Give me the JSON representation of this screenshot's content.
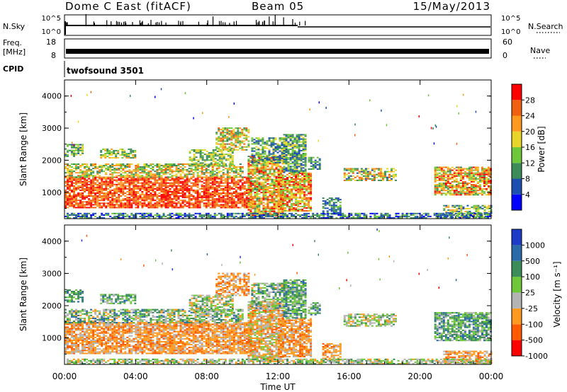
{
  "header": {
    "station": "Dome C East (fitACF)",
    "beam": "Beam 05",
    "date": "15/May/2013"
  },
  "top_panels": {
    "nsky_label": "N.Sky",
    "nsky_ticks": [
      "10^5",
      "10^0"
    ],
    "nsearch_label": "N.Search",
    "nsearch_ticks": [
      "10^5",
      "10^0"
    ],
    "freq_label_1": "Freq.",
    "freq_label_2": "[MHz]",
    "freq_ticks": [
      "18",
      "8"
    ],
    "nave_label": "Nave",
    "nave_ticks": [
      "60",
      "0"
    ],
    "cpid_label": "CPID",
    "cpid_value": "twofsound 3501"
  },
  "x_axis": {
    "label": "Time UT",
    "ticks": [
      "00:00",
      "04:00",
      "08:00",
      "12:00",
      "16:00",
      "20:00",
      "00:00"
    ]
  },
  "colors": {
    "power": [
      "#0000ff",
      "#1c4fb0",
      "#3c8c5a",
      "#6fc83a",
      "#e8d42a",
      "#ff9a1e",
      "#f06010",
      "#ff0000"
    ],
    "velocity": [
      "#ff0000",
      "#ff5a00",
      "#ff9a1e",
      "#b4b4b4",
      "#6fc83a",
      "#3c8c5a",
      "#2a6aa8",
      "#1c3cc8"
    ]
  },
  "chart_data": [
    {
      "type": "heatmap",
      "name": "power-panel",
      "ylabel": "Slant Range [km]",
      "yticks": [
        "4000",
        "3000",
        "2000",
        "1000"
      ],
      "ylim": [
        180,
        4500
      ],
      "xlim_hours": [
        0,
        24
      ],
      "colorbar_label": "Power [dB]",
      "colorbar_ticks": [
        "28",
        "24",
        "20",
        "16",
        "12",
        "8",
        "4"
      ],
      "colorbar_range": [
        0,
        32
      ],
      "regions": [
        {
          "t0": 0.0,
          "t1": 10.5,
          "r0": 500,
          "r1": 1450,
          "v0": 22,
          "v1": 31
        },
        {
          "t0": 0.0,
          "t1": 10.0,
          "r0": 1450,
          "r1": 1900,
          "v0": 8,
          "v1": 26
        },
        {
          "t0": 2.0,
          "t1": 4.0,
          "r0": 2050,
          "r1": 2350,
          "v0": 8,
          "v1": 22
        },
        {
          "t0": 0.0,
          "t1": 1.0,
          "r0": 2100,
          "r1": 2500,
          "v0": 6,
          "v1": 18
        },
        {
          "t0": 8.5,
          "t1": 10.3,
          "r0": 2300,
          "r1": 3000,
          "v0": 8,
          "v1": 26
        },
        {
          "t0": 7.0,
          "t1": 9.5,
          "r0": 1800,
          "r1": 2300,
          "v0": 8,
          "v1": 20
        },
        {
          "t0": 10.3,
          "t1": 12.3,
          "r0": 250,
          "r1": 2100,
          "v0": 10,
          "v1": 31
        },
        {
          "t0": 10.5,
          "t1": 12.5,
          "r0": 1900,
          "r1": 2700,
          "v0": 4,
          "v1": 18
        },
        {
          "t0": 12.0,
          "t1": 13.9,
          "r0": 400,
          "r1": 1600,
          "v0": 12,
          "v1": 31
        },
        {
          "t0": 12.3,
          "t1": 13.5,
          "r0": 1600,
          "r1": 2800,
          "v0": 4,
          "v1": 18
        },
        {
          "t0": 13.7,
          "t1": 14.3,
          "r0": 1700,
          "r1": 2100,
          "v0": 4,
          "v1": 16
        },
        {
          "t0": 15.7,
          "t1": 18.7,
          "r0": 1350,
          "r1": 1750,
          "v0": 6,
          "v1": 28
        },
        {
          "t0": 14.5,
          "t1": 15.5,
          "r0": 300,
          "r1": 800,
          "v0": 4,
          "v1": 14
        },
        {
          "t0": 20.8,
          "t1": 24.0,
          "r0": 900,
          "r1": 1800,
          "v0": 10,
          "v1": 31
        },
        {
          "t0": 21.3,
          "t1": 24.0,
          "r0": 200,
          "r1": 600,
          "v0": 4,
          "v1": 24
        },
        {
          "t0": 0.0,
          "t1": 24.0,
          "r0": 180,
          "r1": 330,
          "v0": 2,
          "v1": 14
        }
      ]
    },
    {
      "type": "heatmap",
      "name": "velocity-panel",
      "ylabel": "Slant Range [km]",
      "yticks": [
        "4000",
        "3000",
        "2000",
        "1000"
      ],
      "ylim": [
        180,
        4500
      ],
      "xlim_hours": [
        0,
        24
      ],
      "colorbar_label": "Velocity [m s⁻¹]",
      "colorbar_ticks": [
        "1000",
        "500",
        "100",
        "25",
        "-25",
        "-100",
        "-500",
        "-1000"
      ],
      "colorbar_range": [
        -1000,
        1000
      ],
      "regions": [
        {
          "t0": 0.0,
          "t1": 10.5,
          "r0": 500,
          "r1": 1450,
          "v0": 1,
          "v1": 3
        },
        {
          "t0": 0.0,
          "t1": 10.0,
          "r0": 1450,
          "r1": 1900,
          "v0": 2,
          "v1": 6
        },
        {
          "t0": 2.0,
          "t1": 4.0,
          "r0": 2050,
          "r1": 2350,
          "v0": 3,
          "v1": 6
        },
        {
          "t0": 0.0,
          "t1": 1.0,
          "r0": 2100,
          "r1": 2500,
          "v0": 4,
          "v1": 6
        },
        {
          "t0": 8.5,
          "t1": 10.3,
          "r0": 2300,
          "r1": 3000,
          "v0": 1,
          "v1": 3
        },
        {
          "t0": 7.0,
          "t1": 9.5,
          "r0": 1800,
          "r1": 2300,
          "v0": 2,
          "v1": 5
        },
        {
          "t0": 10.3,
          "t1": 12.3,
          "r0": 250,
          "r1": 2100,
          "v0": 1,
          "v1": 4
        },
        {
          "t0": 10.5,
          "t1": 12.5,
          "r0": 1900,
          "r1": 2700,
          "v0": 2,
          "v1": 6
        },
        {
          "t0": 12.0,
          "t1": 13.9,
          "r0": 400,
          "r1": 1600,
          "v0": 1,
          "v1": 3
        },
        {
          "t0": 12.3,
          "t1": 13.5,
          "r0": 1600,
          "r1": 2800,
          "v0": 3,
          "v1": 6
        },
        {
          "t0": 13.7,
          "t1": 14.3,
          "r0": 1700,
          "r1": 2100,
          "v0": 3,
          "v1": 6
        },
        {
          "t0": 15.7,
          "t1": 18.7,
          "r0": 1350,
          "r1": 1750,
          "v0": 2,
          "v1": 5
        },
        {
          "t0": 14.5,
          "t1": 15.5,
          "r0": 300,
          "r1": 800,
          "v0": 1,
          "v1": 3
        },
        {
          "t0": 20.8,
          "t1": 24.0,
          "r0": 900,
          "r1": 1800,
          "v0": 3,
          "v1": 6
        },
        {
          "t0": 21.3,
          "t1": 24.0,
          "r0": 200,
          "r1": 600,
          "v0": 1,
          "v1": 3
        },
        {
          "t0": 0.0,
          "t1": 24.0,
          "r0": 180,
          "r1": 330,
          "v0": 2,
          "v1": 5
        }
      ]
    }
  ]
}
